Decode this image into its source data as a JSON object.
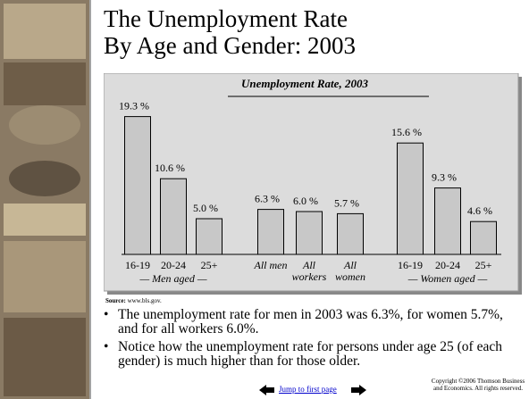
{
  "title_lines": [
    "The Unemployment Rate",
    "By Age and Gender: 2003"
  ],
  "chart_data": {
    "type": "bar",
    "title": "Unemployment Rate, 2003",
    "categories": [
      "16-19",
      "20-24",
      "25+",
      "All men",
      "All workers",
      "All women",
      "16-19",
      "20-24",
      "25+"
    ],
    "values": [
      19.3,
      10.6,
      5.0,
      6.3,
      6.0,
      5.7,
      15.6,
      9.3,
      4.6
    ],
    "value_labels": [
      "19.3 %",
      "10.6 %",
      "5.0 %",
      "6.3 %",
      "6.0 %",
      "5.7 %",
      "15.6 %",
      "9.3 %",
      "4.6 %"
    ],
    "group_labels": [
      "— Men aged —",
      "— Women aged —"
    ],
    "color": "#c8c8c8"
  },
  "source_label": "Source:",
  "source_text": "www.bls.gov.",
  "bullets": [
    "The unemployment rate for men in 2003 was 6.3%, for women 5.7%, and for all workers 6.0%.",
    "Notice how the unemployment rate for persons under age 25 (of each gender) is much higher than for those older."
  ],
  "nav_link": "Jump to first page",
  "copyright": "Copyright ©2006  Thomson Business and Economics. All rights reserved."
}
